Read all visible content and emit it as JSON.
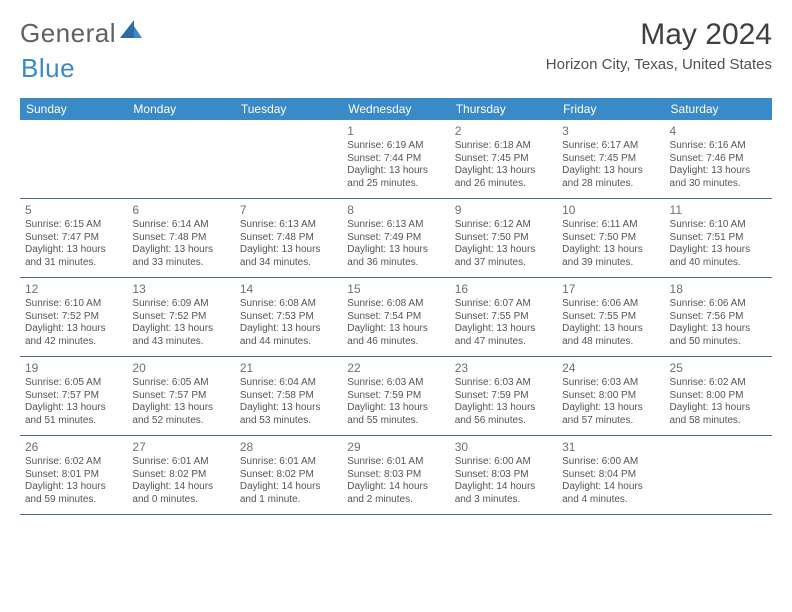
{
  "logo": {
    "text1": "General",
    "text2": "Blue"
  },
  "title": "May 2024",
  "location": "Horizon City, Texas, United States",
  "colors": {
    "header_bg": "#3a8ac8",
    "header_text": "#ffffff",
    "rule": "#4a6a88",
    "day_num": "#707070",
    "detail_text": "#555555",
    "logo_gray": "#606060",
    "logo_blue": "#3a8ac8",
    "title_text": "#404040"
  },
  "typography": {
    "title_fontsize": 30,
    "location_fontsize": 15,
    "header_fontsize": 12,
    "daynum_fontsize": 12,
    "detail_fontsize": 10
  },
  "day_headers": [
    "Sunday",
    "Monday",
    "Tuesday",
    "Wednesday",
    "Thursday",
    "Friday",
    "Saturday"
  ],
  "weeks": [
    [
      {
        "n": "",
        "sr": "",
        "ss": "",
        "dl": ""
      },
      {
        "n": "",
        "sr": "",
        "ss": "",
        "dl": ""
      },
      {
        "n": "",
        "sr": "",
        "ss": "",
        "dl": ""
      },
      {
        "n": "1",
        "sr": "Sunrise: 6:19 AM",
        "ss": "Sunset: 7:44 PM",
        "dl": "Daylight: 13 hours and 25 minutes."
      },
      {
        "n": "2",
        "sr": "Sunrise: 6:18 AM",
        "ss": "Sunset: 7:45 PM",
        "dl": "Daylight: 13 hours and 26 minutes."
      },
      {
        "n": "3",
        "sr": "Sunrise: 6:17 AM",
        "ss": "Sunset: 7:45 PM",
        "dl": "Daylight: 13 hours and 28 minutes."
      },
      {
        "n": "4",
        "sr": "Sunrise: 6:16 AM",
        "ss": "Sunset: 7:46 PM",
        "dl": "Daylight: 13 hours and 30 minutes."
      }
    ],
    [
      {
        "n": "5",
        "sr": "Sunrise: 6:15 AM",
        "ss": "Sunset: 7:47 PM",
        "dl": "Daylight: 13 hours and 31 minutes."
      },
      {
        "n": "6",
        "sr": "Sunrise: 6:14 AM",
        "ss": "Sunset: 7:48 PM",
        "dl": "Daylight: 13 hours and 33 minutes."
      },
      {
        "n": "7",
        "sr": "Sunrise: 6:13 AM",
        "ss": "Sunset: 7:48 PM",
        "dl": "Daylight: 13 hours and 34 minutes."
      },
      {
        "n": "8",
        "sr": "Sunrise: 6:13 AM",
        "ss": "Sunset: 7:49 PM",
        "dl": "Daylight: 13 hours and 36 minutes."
      },
      {
        "n": "9",
        "sr": "Sunrise: 6:12 AM",
        "ss": "Sunset: 7:50 PM",
        "dl": "Daylight: 13 hours and 37 minutes."
      },
      {
        "n": "10",
        "sr": "Sunrise: 6:11 AM",
        "ss": "Sunset: 7:50 PM",
        "dl": "Daylight: 13 hours and 39 minutes."
      },
      {
        "n": "11",
        "sr": "Sunrise: 6:10 AM",
        "ss": "Sunset: 7:51 PM",
        "dl": "Daylight: 13 hours and 40 minutes."
      }
    ],
    [
      {
        "n": "12",
        "sr": "Sunrise: 6:10 AM",
        "ss": "Sunset: 7:52 PM",
        "dl": "Daylight: 13 hours and 42 minutes."
      },
      {
        "n": "13",
        "sr": "Sunrise: 6:09 AM",
        "ss": "Sunset: 7:52 PM",
        "dl": "Daylight: 13 hours and 43 minutes."
      },
      {
        "n": "14",
        "sr": "Sunrise: 6:08 AM",
        "ss": "Sunset: 7:53 PM",
        "dl": "Daylight: 13 hours and 44 minutes."
      },
      {
        "n": "15",
        "sr": "Sunrise: 6:08 AM",
        "ss": "Sunset: 7:54 PM",
        "dl": "Daylight: 13 hours and 46 minutes."
      },
      {
        "n": "16",
        "sr": "Sunrise: 6:07 AM",
        "ss": "Sunset: 7:55 PM",
        "dl": "Daylight: 13 hours and 47 minutes."
      },
      {
        "n": "17",
        "sr": "Sunrise: 6:06 AM",
        "ss": "Sunset: 7:55 PM",
        "dl": "Daylight: 13 hours and 48 minutes."
      },
      {
        "n": "18",
        "sr": "Sunrise: 6:06 AM",
        "ss": "Sunset: 7:56 PM",
        "dl": "Daylight: 13 hours and 50 minutes."
      }
    ],
    [
      {
        "n": "19",
        "sr": "Sunrise: 6:05 AM",
        "ss": "Sunset: 7:57 PM",
        "dl": "Daylight: 13 hours and 51 minutes."
      },
      {
        "n": "20",
        "sr": "Sunrise: 6:05 AM",
        "ss": "Sunset: 7:57 PM",
        "dl": "Daylight: 13 hours and 52 minutes."
      },
      {
        "n": "21",
        "sr": "Sunrise: 6:04 AM",
        "ss": "Sunset: 7:58 PM",
        "dl": "Daylight: 13 hours and 53 minutes."
      },
      {
        "n": "22",
        "sr": "Sunrise: 6:03 AM",
        "ss": "Sunset: 7:59 PM",
        "dl": "Daylight: 13 hours and 55 minutes."
      },
      {
        "n": "23",
        "sr": "Sunrise: 6:03 AM",
        "ss": "Sunset: 7:59 PM",
        "dl": "Daylight: 13 hours and 56 minutes."
      },
      {
        "n": "24",
        "sr": "Sunrise: 6:03 AM",
        "ss": "Sunset: 8:00 PM",
        "dl": "Daylight: 13 hours and 57 minutes."
      },
      {
        "n": "25",
        "sr": "Sunrise: 6:02 AM",
        "ss": "Sunset: 8:00 PM",
        "dl": "Daylight: 13 hours and 58 minutes."
      }
    ],
    [
      {
        "n": "26",
        "sr": "Sunrise: 6:02 AM",
        "ss": "Sunset: 8:01 PM",
        "dl": "Daylight: 13 hours and 59 minutes."
      },
      {
        "n": "27",
        "sr": "Sunrise: 6:01 AM",
        "ss": "Sunset: 8:02 PM",
        "dl": "Daylight: 14 hours and 0 minutes."
      },
      {
        "n": "28",
        "sr": "Sunrise: 6:01 AM",
        "ss": "Sunset: 8:02 PM",
        "dl": "Daylight: 14 hours and 1 minute."
      },
      {
        "n": "29",
        "sr": "Sunrise: 6:01 AM",
        "ss": "Sunset: 8:03 PM",
        "dl": "Daylight: 14 hours and 2 minutes."
      },
      {
        "n": "30",
        "sr": "Sunrise: 6:00 AM",
        "ss": "Sunset: 8:03 PM",
        "dl": "Daylight: 14 hours and 3 minutes."
      },
      {
        "n": "31",
        "sr": "Sunrise: 6:00 AM",
        "ss": "Sunset: 8:04 PM",
        "dl": "Daylight: 14 hours and 4 minutes."
      },
      {
        "n": "",
        "sr": "",
        "ss": "",
        "dl": ""
      }
    ]
  ]
}
